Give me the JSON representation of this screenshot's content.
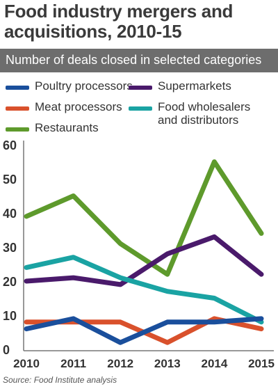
{
  "title_line1": "Food industry mergers and",
  "title_line2": "acquisitions, 2010-15",
  "subtitle": "Number of deals closed in selected categories",
  "source": "Source: Food Institute analysis",
  "legend": [
    {
      "label": "Poultry processors",
      "color": "#1a4f9c"
    },
    {
      "label": "Supermarkets",
      "color": "#4a1a6b"
    },
    {
      "label": "Meat processors",
      "color": "#d9512c"
    },
    {
      "label": "Food wholesalers",
      "label2": "and distributors",
      "color": "#1aa3a3"
    },
    {
      "label": "Restaurants",
      "color": "#5e9a2c"
    }
  ],
  "chart_data": {
    "type": "line",
    "categories": [
      "2010",
      "2011",
      "2012",
      "2013",
      "2014",
      "2015"
    ],
    "ylim": [
      0,
      60
    ],
    "yticks": [
      "0",
      "10",
      "20",
      "30",
      "40",
      "50",
      "60"
    ],
    "series": [
      {
        "name": "Restaurants",
        "color": "#5e9a2c",
        "values": [
          39,
          45,
          31,
          22,
          55,
          34
        ]
      },
      {
        "name": "Supermarkets",
        "color": "#4a1a6b",
        "values": [
          20,
          21,
          19,
          28,
          33,
          22
        ]
      },
      {
        "name": "Food wholesalers and distributors",
        "color": "#1aa3a3",
        "values": [
          24,
          27,
          21,
          17,
          15,
          8
        ]
      },
      {
        "name": "Meat processors",
        "color": "#d9512c",
        "values": [
          8,
          8,
          8,
          2,
          9,
          6
        ]
      },
      {
        "name": "Poultry processors",
        "color": "#1a4f9c",
        "values": [
          6,
          9,
          2,
          8,
          8,
          9
        ]
      }
    ]
  }
}
